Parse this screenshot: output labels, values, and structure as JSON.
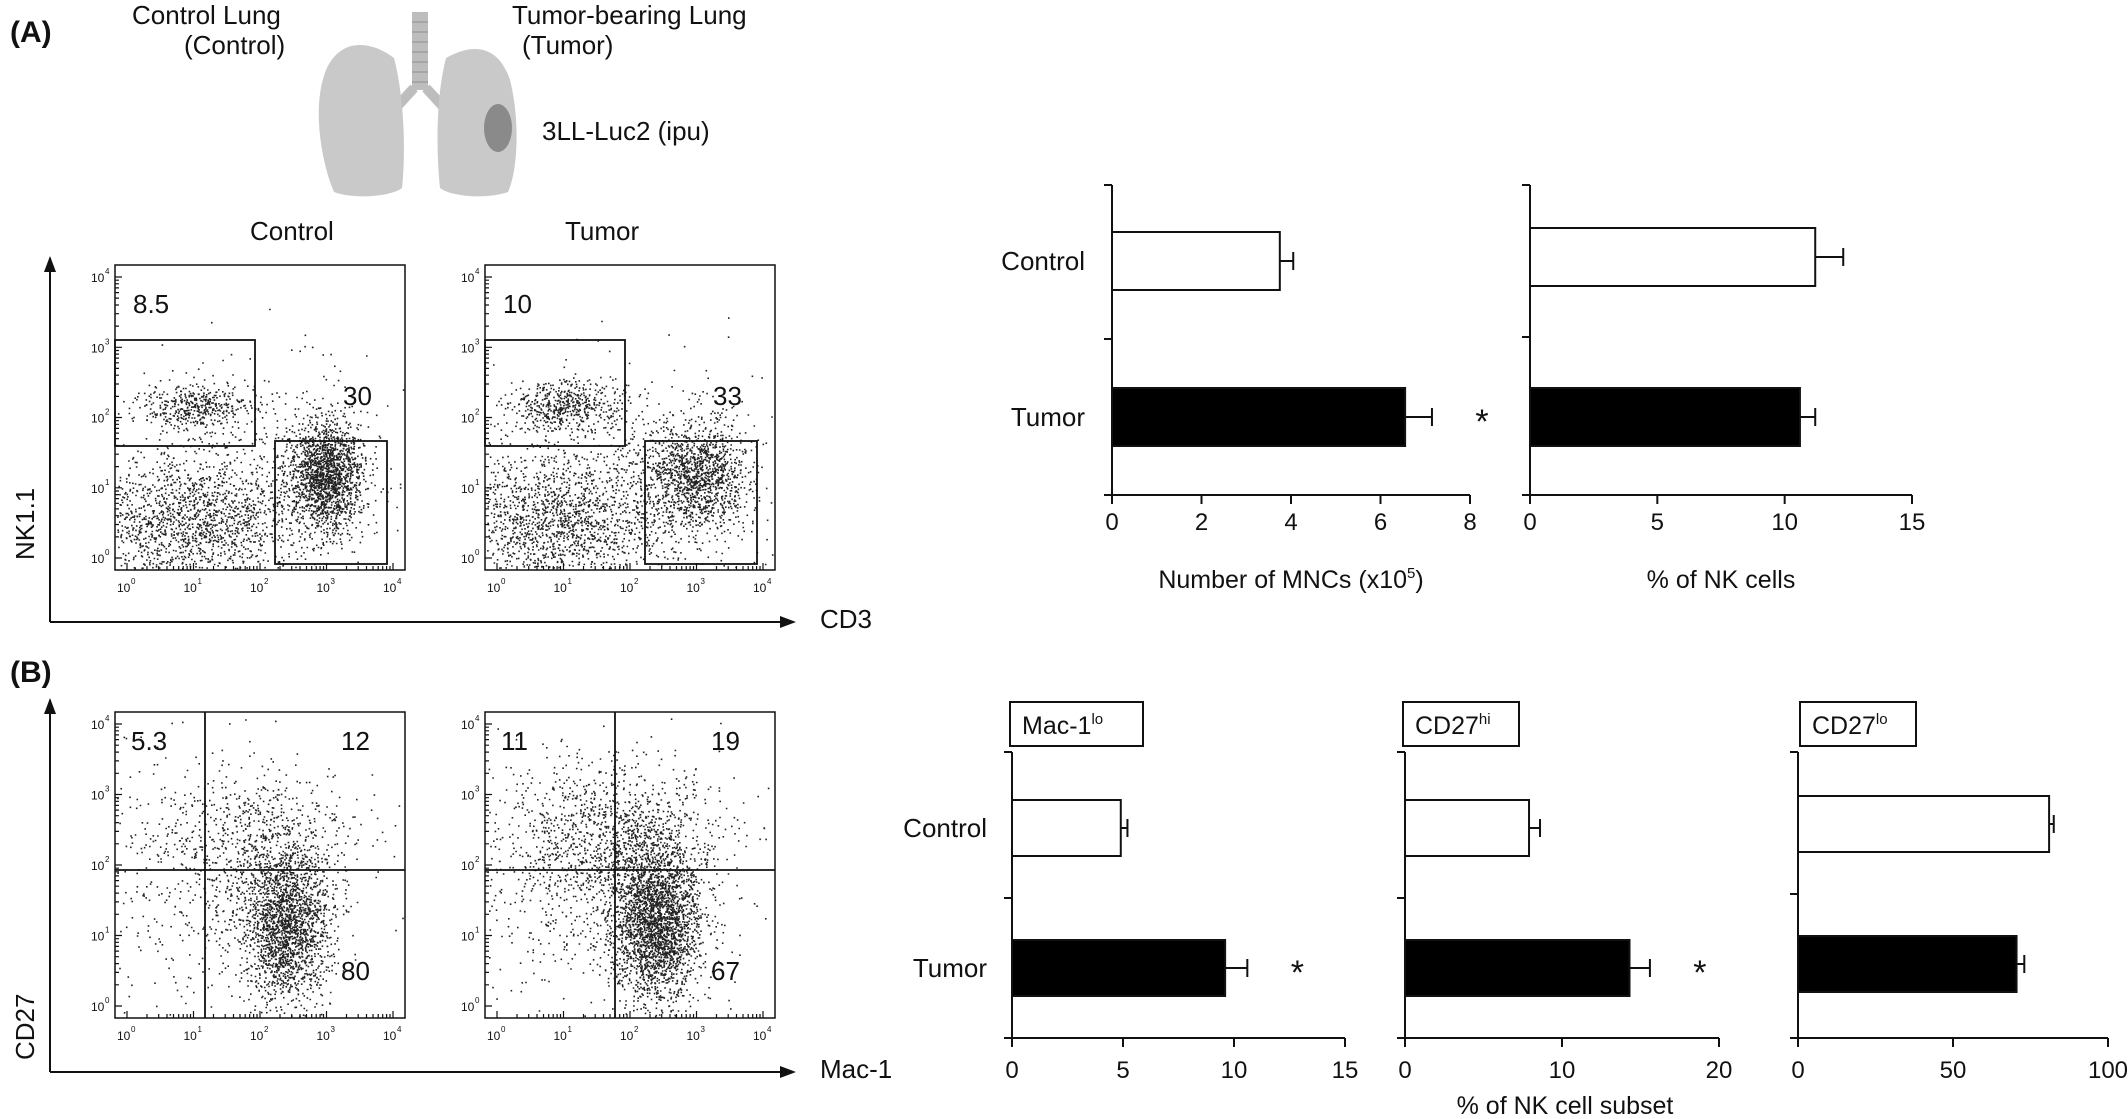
{
  "panel_labels": {
    "a": "(A)",
    "b": "(B)"
  },
  "schematic": {
    "left_title": "Control Lung",
    "left_sub": "(Control)",
    "right_title": "Tumor-bearing Lung",
    "right_sub": "(Tumor)",
    "tumor_label": "3LL-Luc2 (ipu)"
  },
  "flow": {
    "a": {
      "y_label": "NK1.1",
      "x_label": "CD3",
      "plots": [
        {
          "title": "Control",
          "gates": {
            "nk": "8.5",
            "t": "30"
          }
        },
        {
          "title": "Tumor",
          "gates": {
            "nk": "10",
            "t": "33"
          }
        }
      ]
    },
    "b": {
      "y_label": "CD27",
      "x_label": "Mac-1",
      "plots": [
        {
          "quadrants": {
            "ul": "5.3",
            "ur": "12",
            "lr": "80"
          }
        },
        {
          "quadrants": {
            "ul": "11",
            "ur": "19",
            "lr": "67"
          }
        }
      ]
    },
    "tick_labels": [
      "10",
      "10",
      "10",
      "10",
      "10"
    ],
    "tick_exponents": [
      "0",
      "1",
      "2",
      "3",
      "4"
    ]
  },
  "bars": {
    "a_xlabel_main": "Number of MNCs (x10",
    "a_xlabel_sup": "5",
    "a_xlabel_close": ")",
    "a_xlabel2": "% of NK cells",
    "b_xlabel": "% of NK cell subset",
    "b_box_labels": [
      {
        "main": "Mac-1",
        "sup": "lo"
      },
      {
        "main": "CD27",
        "sup": "hi"
      },
      {
        "main": "CD27",
        "sup": "lo"
      }
    ],
    "significance_mark": "*"
  },
  "chart_data": [
    {
      "type": "bar",
      "orientation": "horizontal",
      "categories": [
        "Control",
        "Tumor"
      ],
      "values": [
        3.75,
        6.55
      ],
      "errors": [
        0.3,
        0.6
      ],
      "significant": [
        false,
        true
      ],
      "xlabel": "Number of MNCs (x10^5)",
      "xlim": [
        0,
        8
      ],
      "ticks": [
        0,
        2,
        4,
        6,
        8
      ],
      "colors": [
        "#ffffff",
        "#000000"
      ]
    },
    {
      "type": "bar",
      "orientation": "horizontal",
      "categories": [
        "Control",
        "Tumor"
      ],
      "values": [
        11.2,
        10.6
      ],
      "errors": [
        1.1,
        0.6
      ],
      "significant": [
        false,
        false
      ],
      "xlabel": "% of NK cells",
      "xlim": [
        0,
        15
      ],
      "ticks": [
        0,
        5,
        10,
        15
      ],
      "colors": [
        "#ffffff",
        "#000000"
      ]
    },
    {
      "type": "bar",
      "orientation": "horizontal",
      "title": "Mac-1lo",
      "categories": [
        "Control",
        "Tumor"
      ],
      "values": [
        4.9,
        9.6
      ],
      "errors": [
        0.3,
        1.0
      ],
      "significant": [
        false,
        true
      ],
      "xlabel": "% of NK cell subset",
      "xlim": [
        0,
        15
      ],
      "ticks": [
        0,
        5,
        10,
        15
      ],
      "colors": [
        "#ffffff",
        "#000000"
      ]
    },
    {
      "type": "bar",
      "orientation": "horizontal",
      "title": "CD27hi",
      "categories": [
        "Control",
        "Tumor"
      ],
      "values": [
        7.9,
        14.3
      ],
      "errors": [
        0.7,
        1.3
      ],
      "significant": [
        false,
        true
      ],
      "xlabel": "% of NK cell subset",
      "xlim": [
        0,
        20
      ],
      "ticks": [
        0,
        10,
        20
      ],
      "colors": [
        "#ffffff",
        "#000000"
      ]
    },
    {
      "type": "bar",
      "orientation": "horizontal",
      "title": "CD27lo",
      "categories": [
        "Control",
        "Tumor"
      ],
      "values": [
        81,
        70.5
      ],
      "errors": [
        1.5,
        2.5
      ],
      "significant": [
        false,
        false
      ],
      "xlabel": "% of NK cell subset",
      "xlim": [
        0,
        100
      ],
      "ticks": [
        0,
        50,
        100
      ],
      "colors": [
        "#ffffff",
        "#000000"
      ]
    }
  ]
}
